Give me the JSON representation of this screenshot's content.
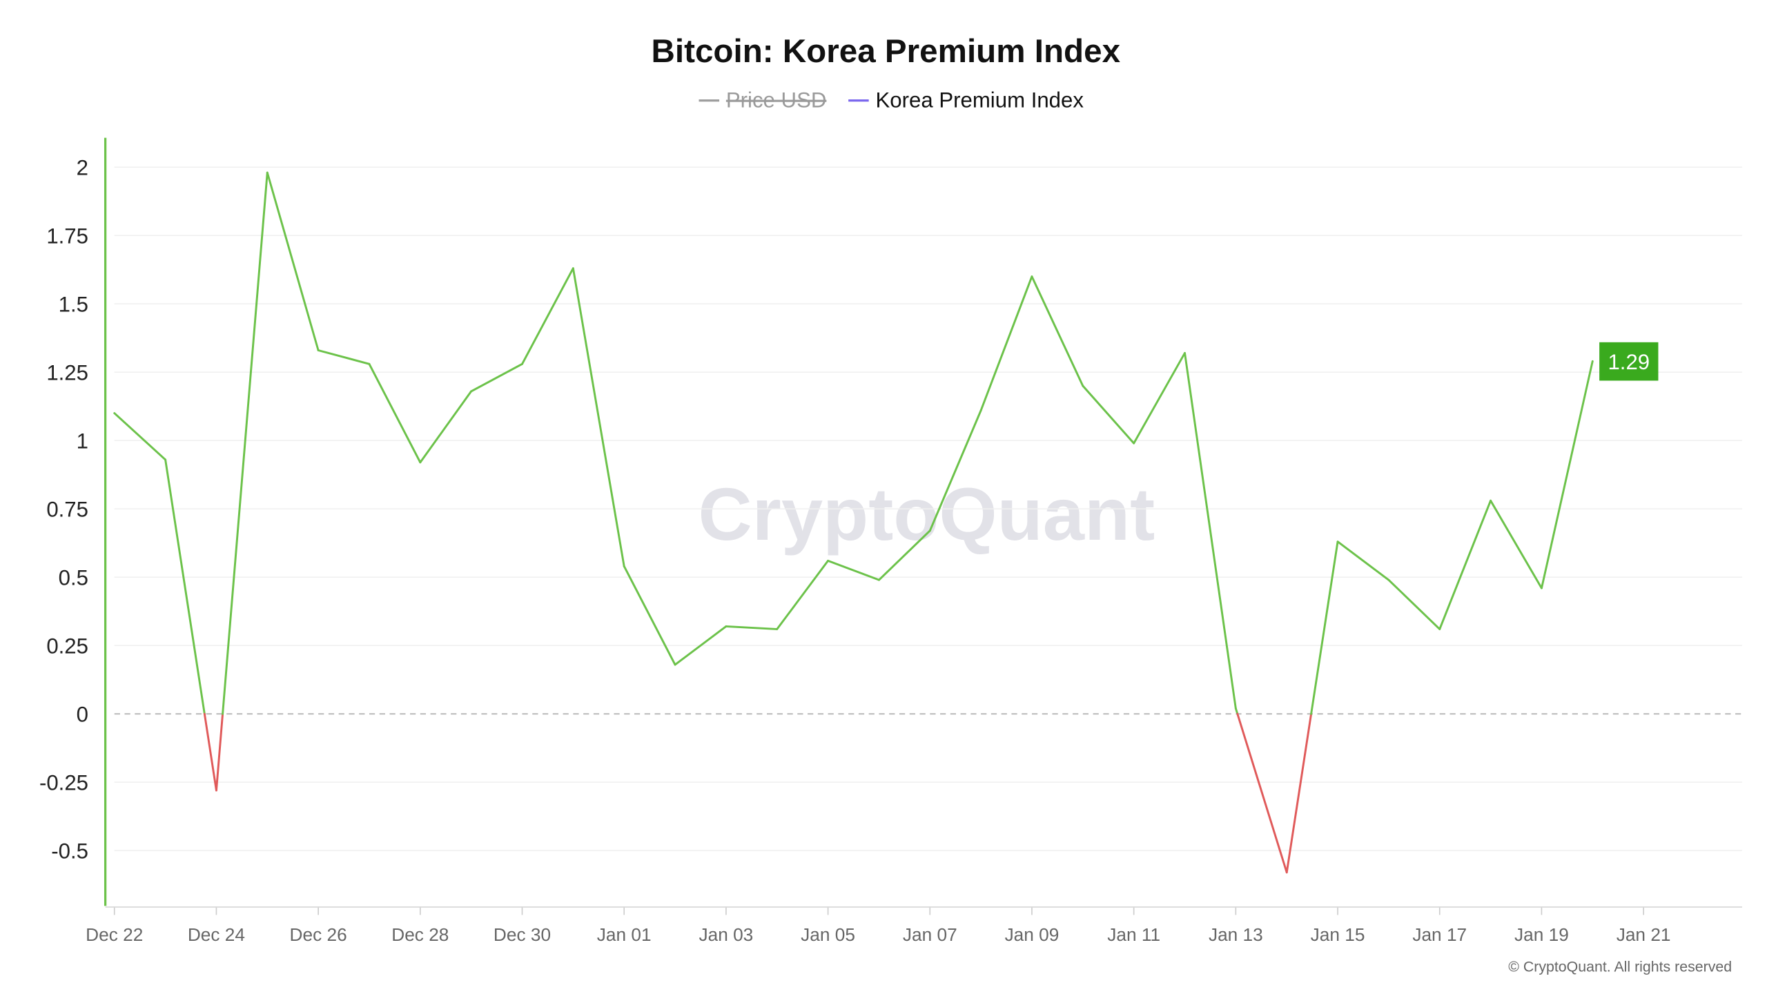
{
  "chart_data": {
    "type": "line",
    "title": "Bitcoin: Korea Premium Index",
    "legend": [
      {
        "name": "Price USD",
        "color": "#9e9e9e",
        "hidden": true
      },
      {
        "name": "Korea Premium Index",
        "color": "#7b68ee",
        "hidden": false
      }
    ],
    "legend_placement": "top-center",
    "positive_color": "#6cc24a",
    "negative_color": "#e05a5a",
    "axis_color": "#6cc24a",
    "current_value_label": "1.29",
    "current_value_color": "#3aaa1e",
    "watermark": "CryptoQuant",
    "copyright": "© CryptoQuant. All rights reserved",
    "ylim": [
      -0.7,
      2.1
    ],
    "yticks": [
      2,
      1.75,
      1.5,
      1.25,
      1,
      0.75,
      0.5,
      0.25,
      0,
      -0.25,
      -0.5
    ],
    "ytick_labels": [
      "2",
      "1.75",
      "1.5",
      "1.25",
      "1",
      "0.75",
      "0.5",
      "0.25",
      "0",
      "-0.25",
      "-0.5"
    ],
    "xtick_labels": [
      "Dec 22",
      "Dec 24",
      "Dec 26",
      "Dec 28",
      "Dec 30",
      "Jan 01",
      "Jan 03",
      "Jan 05",
      "Jan 07",
      "Jan 09",
      "Jan 11",
      "Jan 13",
      "Jan 15",
      "Jan 17",
      "Jan 19",
      "Jan 21"
    ],
    "grid": true,
    "zero_line": "dashed",
    "series": [
      {
        "name": "Korea Premium Index",
        "x": [
          "Dec 22",
          "Dec 23",
          "Dec 24",
          "Dec 25",
          "Dec 26",
          "Dec 27",
          "Dec 28",
          "Dec 29",
          "Dec 30",
          "Dec 31",
          "Jan 01",
          "Jan 02",
          "Jan 03",
          "Jan 04",
          "Jan 05",
          "Jan 06",
          "Jan 07",
          "Jan 08",
          "Jan 09",
          "Jan 10",
          "Jan 11",
          "Jan 12",
          "Jan 13",
          "Jan 14",
          "Jan 15",
          "Jan 16",
          "Jan 17",
          "Jan 18",
          "Jan 19",
          "Jan 20"
        ],
        "values": [
          1.1,
          0.93,
          -0.28,
          1.98,
          1.33,
          1.28,
          0.92,
          1.18,
          1.28,
          1.63,
          0.54,
          0.18,
          0.32,
          0.31,
          0.56,
          0.49,
          0.67,
          1.11,
          1.6,
          1.2,
          0.99,
          1.32,
          0.02,
          -0.58,
          0.63,
          0.49,
          0.31,
          0.78,
          0.46,
          1.29
        ]
      }
    ]
  }
}
